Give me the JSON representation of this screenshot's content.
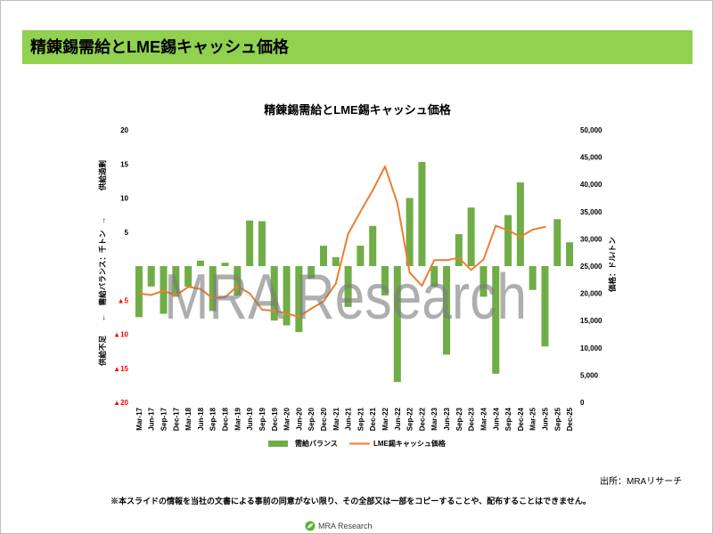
{
  "header": {
    "title": "精錬錫需給とLME錫キャッシュ価格"
  },
  "chart_data": {
    "type": "bar",
    "title": "精錬錫需給とLME錫キャッシュ価格",
    "ylabel_parts": [
      "供給不足",
      "←",
      "需給バランス：千トン",
      "→",
      "供給過剰"
    ],
    "y2label": "価格：ドル/トン",
    "categories": [
      "Mar-17",
      "Jun-17",
      "Sep-17",
      "Dec-17",
      "Mar-18",
      "Jun-18",
      "Sep-18",
      "Dec-18",
      "Mar-19",
      "Jun-19",
      "Sep-19",
      "Dec-19",
      "Mar-20",
      "Jun-20",
      "Sep-20",
      "Dec-20",
      "Mar-21",
      "Jun-21",
      "Sep-21",
      "Dec-21",
      "Mar-22",
      "Jun-22",
      "Sep-22",
      "Dec-22",
      "Mar-23",
      "Jun-23",
      "Sep-23",
      "Dec-23",
      "Mar-24",
      "Jun-24",
      "Sep-24",
      "Dec-24",
      "Mar-25",
      "Jun-25",
      "Sep-25",
      "Dec-25"
    ],
    "ylim": [
      -20,
      20
    ],
    "y2lim": [
      0,
      50000
    ],
    "y_ticks": [
      20,
      15,
      10,
      5,
      -5,
      -10,
      -15,
      -20
    ],
    "y_tick_labels": [
      "20",
      "15",
      "10",
      "5",
      "▲5",
      "▲10",
      "▲15",
      "▲20"
    ],
    "y2_ticks": [
      50000,
      45000,
      40000,
      35000,
      30000,
      25000,
      20000,
      15000,
      10000,
      5000,
      0
    ],
    "y2_tick_labels": [
      "50,000",
      "45,000",
      "40,000",
      "35,000",
      "30,000",
      "25,000",
      "20,000",
      "15,000",
      "10,000",
      "5,000",
      "0"
    ],
    "series": [
      {
        "name": "需給バランス",
        "type": "bar",
        "axis": "left",
        "color": "#70AD47",
        "values": [
          -7.5,
          -3.0,
          -7.0,
          -4.5,
          -3.0,
          0.8,
          -6.6,
          0.5,
          -4.3,
          6.7,
          6.6,
          -8.0,
          -8.7,
          -9.7,
          -1.8,
          3.0,
          1.3,
          -6.0,
          3.0,
          5.9,
          -4.3,
          -17.0,
          10.0,
          15.3,
          -3.0,
          -13.0,
          4.7,
          8.6,
          -4.5,
          -15.8,
          7.5,
          12.3,
          -3.5,
          -11.8,
          6.9,
          3.5
        ]
      },
      {
        "name": "LME錫キャッシュ価格",
        "type": "line",
        "axis": "right",
        "color": "#ED7D31",
        "values": [
          20000,
          19700,
          20500,
          19600,
          21200,
          20800,
          19100,
          19300,
          21300,
          20000,
          17000,
          16800,
          16300,
          15700,
          17200,
          18500,
          21800,
          30900,
          35000,
          38900,
          43300,
          36600,
          23800,
          21400,
          26100,
          26100,
          26500,
          24300,
          26200,
          32400,
          31600,
          30400,
          31700,
          32200,
          null,
          null
        ]
      }
    ],
    "grid": false,
    "legend": "bottom"
  },
  "watermark": "MRA Research",
  "footer": {
    "source": "出所：MRAリサーチ",
    "notice": "※本スライドの情報を当社の文書による事前の同意がない限り、その全部又は一部をコピーすることや、配布することはできません。",
    "logo_text": "MRA Research"
  },
  "colors": {
    "header_band": "#92D050",
    "negative_tick": "#FF0000",
    "logo_green": "#5BB12F"
  }
}
